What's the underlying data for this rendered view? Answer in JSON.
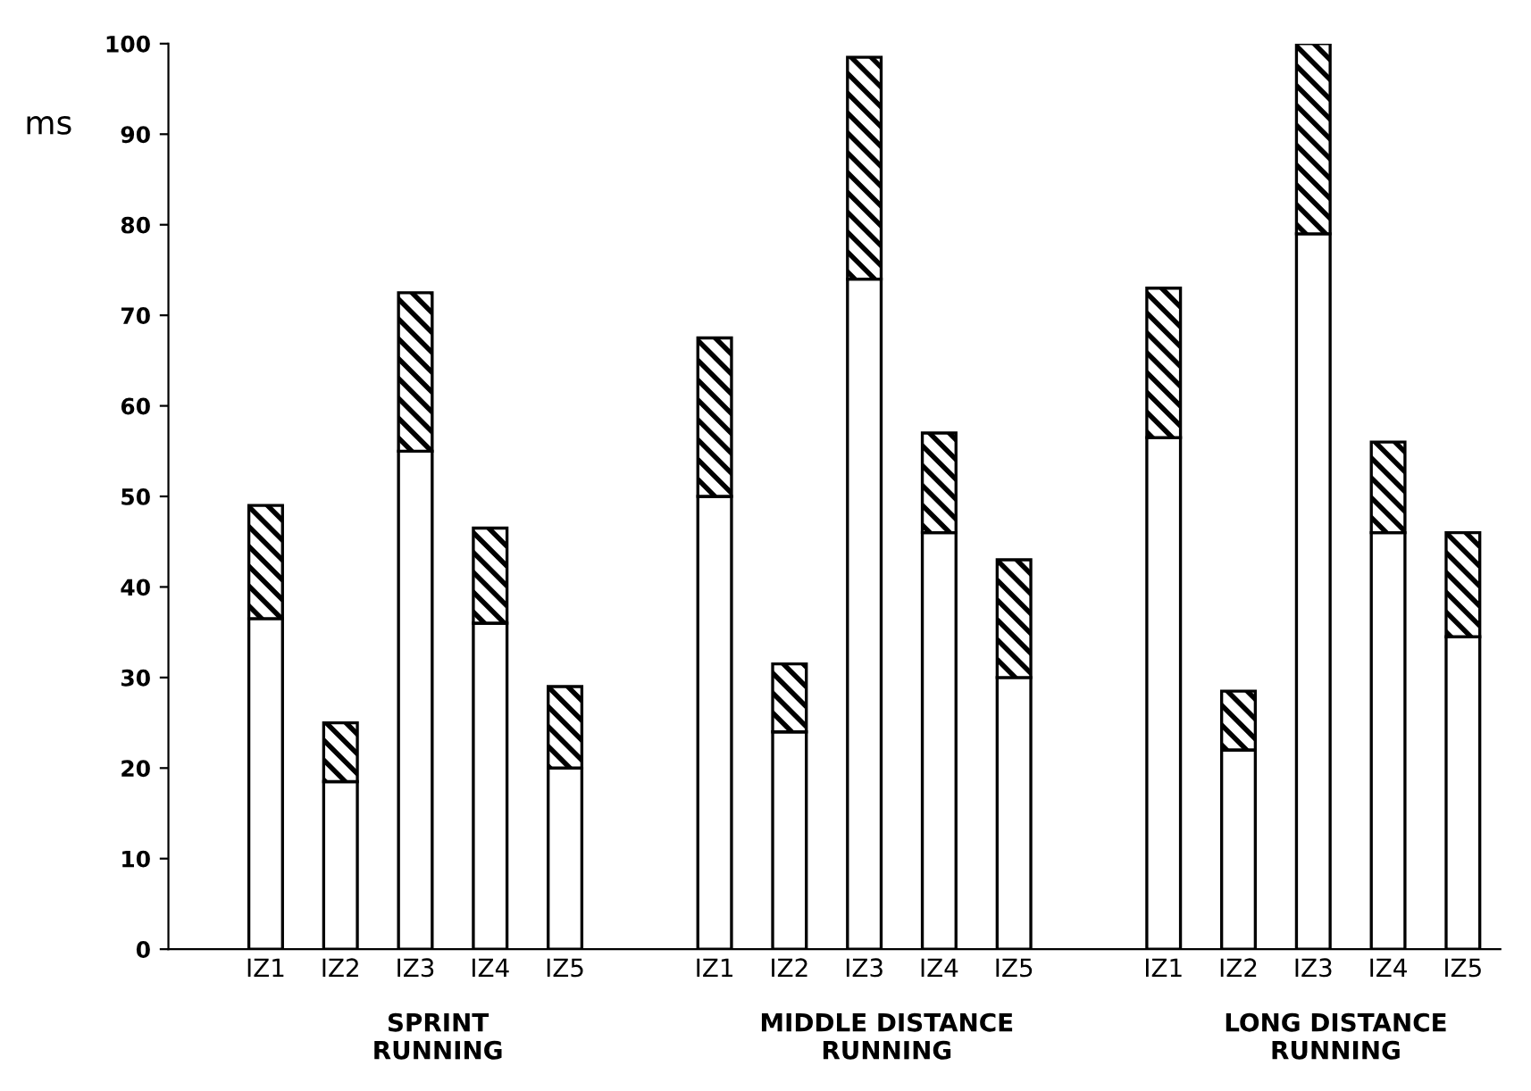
{
  "chart_data": {
    "type": "bar",
    "stacked": true,
    "ylabel": "ms",
    "categories": [
      "IZ1",
      "IZ2",
      "IZ3",
      "IZ4",
      "IZ5",
      null,
      "IZ1",
      "IZ2",
      "IZ3",
      "IZ4",
      "IZ5",
      null,
      "IZ1",
      "IZ2",
      "IZ3",
      "IZ4",
      "IZ5"
    ],
    "series": [
      {
        "color": "#ffffff",
        "values": [
          36.5,
          18.5,
          55,
          36,
          20,
          null,
          50,
          24,
          74,
          46,
          30,
          null,
          56.5,
          22,
          79,
          46,
          34.5
        ]
      },
      {
        "color": "#000000",
        "values": [
          12.5,
          6.5,
          17.5,
          10.5,
          9,
          null,
          17.5,
          7.5,
          24.5,
          11,
          13,
          null,
          16.5,
          6.5,
          21,
          10,
          11.5
        ]
      }
    ],
    "annotations": [
      "SPRINT\nRUNNING",
      "MIDDLE DISTANCE\nRUNNING",
      "LONG DISTANCE\nRUNNING"
    ],
    "ylim": [
      0,
      100
    ],
    "yticks": [
      0,
      10,
      20,
      30,
      40,
      50,
      60,
      70,
      80,
      90,
      100
    ],
    "grid": false,
    "legend": false
  }
}
